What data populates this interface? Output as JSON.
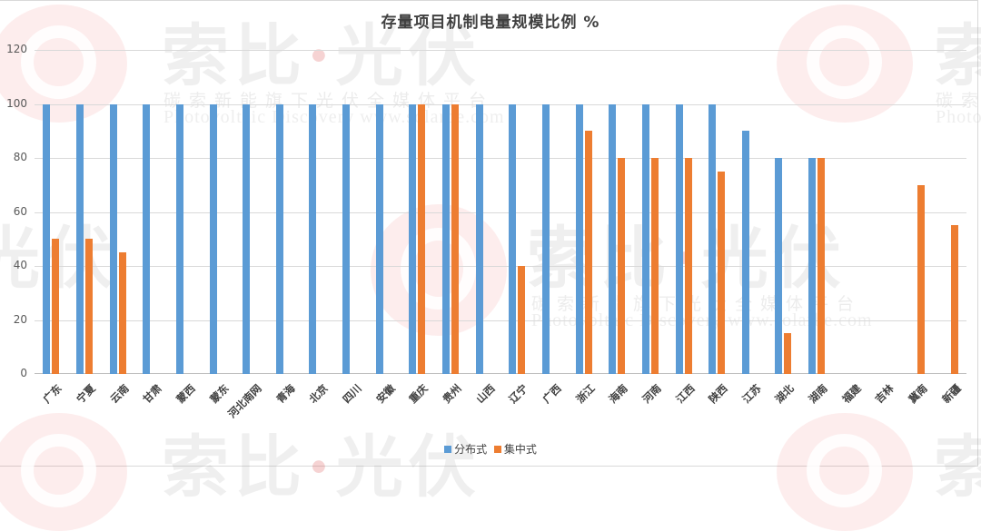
{
  "chart_data": {
    "type": "bar",
    "title": "存量项目机制电量规模比例 %",
    "xlabel": "",
    "ylabel": "",
    "ylim": [
      0,
      120
    ],
    "yticks": [
      0,
      20,
      40,
      60,
      80,
      100,
      120
    ],
    "grid": true,
    "legend_position": "bottom",
    "categories": [
      "广东",
      "宁夏",
      "云南",
      "甘肃",
      "蒙西",
      "蒙东",
      "河北南网",
      "青海",
      "北京",
      "四川",
      "安徽",
      "重庆",
      "贵州",
      "山西",
      "辽宁",
      "广西",
      "浙江",
      "海南",
      "河南",
      "江西",
      "陕西",
      "江苏",
      "湖北",
      "湖南",
      "福建",
      "吉林",
      "冀南",
      "新疆"
    ],
    "series": [
      {
        "name": "分布式",
        "color": "#5b9bd5",
        "values": [
          100,
          100,
          100,
          100,
          100,
          100,
          100,
          100,
          100,
          100,
          100,
          100,
          100,
          100,
          100,
          100,
          100,
          100,
          100,
          100,
          100,
          90,
          80,
          80,
          null,
          null,
          null,
          null
        ]
      },
      {
        "name": "集中式",
        "color": "#ed7d31",
        "values": [
          50,
          50,
          45,
          null,
          null,
          null,
          null,
          null,
          null,
          null,
          null,
          100,
          100,
          null,
          40,
          null,
          90,
          80,
          80,
          80,
          75,
          null,
          15,
          80,
          null,
          null,
          70,
          55
        ]
      }
    ]
  },
  "legend": {
    "items": [
      {
        "label": "分布式",
        "color": "#5b9bd5"
      },
      {
        "label": "集中式",
        "color": "#ed7d31"
      }
    ]
  },
  "watermark": {
    "brand": "索比·光伏",
    "brand_left": "索比",
    "brand_right": "光伏",
    "tagline": "碳索新能旗下光伏全媒体平台",
    "url": "Photovoltaic Discovery   www.solarbe.com"
  }
}
